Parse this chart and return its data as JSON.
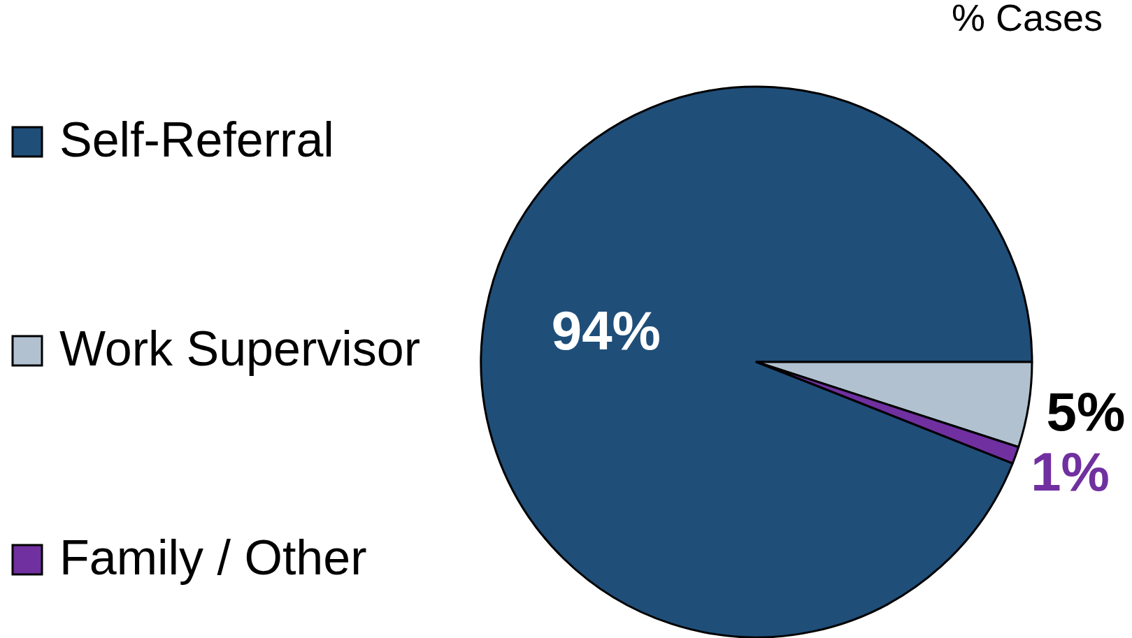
{
  "chart_data": {
    "type": "pie",
    "title": "% Cases",
    "categories": [
      "Self-Referral",
      "Work Supervisor",
      "Family / Other"
    ],
    "values": [
      94,
      5,
      1
    ],
    "colors": [
      "#1f4e79",
      "#b1c1d0",
      "#7030a0"
    ],
    "value_labels": [
      "94%",
      "5%",
      "1%"
    ],
    "legend": "left"
  }
}
